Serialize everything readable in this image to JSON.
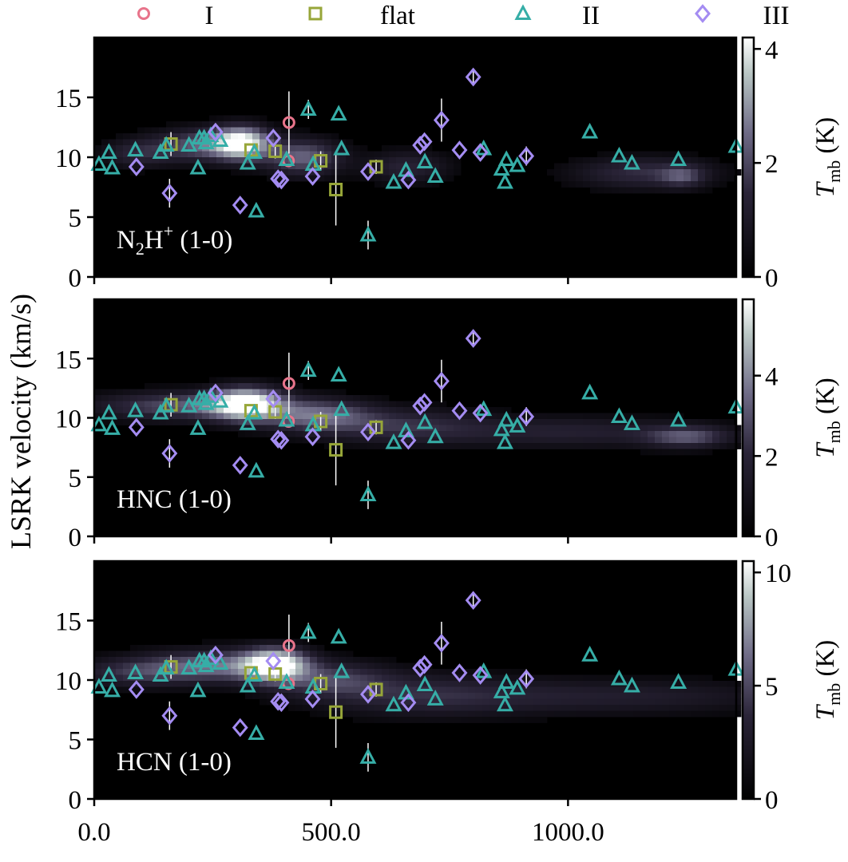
{
  "chart_data": {
    "type": "scatter",
    "ylabel": "LSRK velocity (km/s)",
    "xlim": [
      0,
      1355
    ],
    "ylim": [
      0,
      20
    ],
    "xticks": [
      0,
      500,
      1000
    ],
    "xtick_labels": [
      "0.0",
      "500.0",
      "1000.0"
    ],
    "yticks": [
      0,
      5,
      10,
      15
    ],
    "legend": {
      "placement": "top",
      "entries": [
        {
          "label": "I",
          "marker": "circle",
          "color": "#e8748b"
        },
        {
          "label": "flat",
          "marker": "square",
          "color": "#97a639"
        },
        {
          "label": "II",
          "marker": "triangle",
          "color": "#36aea7"
        },
        {
          "label": "III",
          "marker": "diamond",
          "color": "#a48cf2"
        }
      ]
    },
    "panels": [
      {
        "label_main": "N",
        "label_sub": "2",
        "label_main2": "H",
        "label_sup": "+",
        "label_tail": " (1-0)",
        "colorbar": {
          "label_main": "T",
          "label_sub": "mb",
          "label_unit": " (K)",
          "ticks": [
            0,
            2,
            4
          ],
          "max": 4.2
        },
        "emission": [
          {
            "x": 310,
            "v": 11.2,
            "sx": 40,
            "sv": 0.9,
            "amp": 1.0
          },
          {
            "x": 225,
            "v": 11.0,
            "sx": 70,
            "sv": 0.9,
            "amp": 0.45
          },
          {
            "x": 440,
            "v": 10.0,
            "sx": 55,
            "sv": 1.0,
            "amp": 0.5
          },
          {
            "x": 90,
            "v": 10.3,
            "sx": 50,
            "sv": 0.8,
            "amp": 0.25
          },
          {
            "x": 660,
            "v": 9.2,
            "sx": 60,
            "sv": 0.9,
            "amp": 0.25
          },
          {
            "x": 1160,
            "v": 8.7,
            "sx": 100,
            "sv": 0.9,
            "amp": 0.3
          },
          {
            "x": 1240,
            "v": 8.4,
            "sx": 30,
            "sv": 0.6,
            "amp": 0.3
          }
        ]
      },
      {
        "label_main": "HNC (1-0)",
        "label_sub": "",
        "label_main2": "",
        "label_sup": "",
        "label_tail": "",
        "colorbar": {
          "label_main": "T",
          "label_sub": "mb",
          "label_unit": " (K)",
          "ticks": [
            0,
            2,
            4
          ],
          "max": 5.9
        },
        "emission": [
          {
            "x": 320,
            "v": 11.2,
            "sx": 50,
            "sv": 0.9,
            "amp": 1.0
          },
          {
            "x": 200,
            "v": 11.0,
            "sx": 130,
            "sv": 0.8,
            "amp": 0.45
          },
          {
            "x": 470,
            "v": 10.2,
            "sx": 80,
            "sv": 0.9,
            "amp": 0.5
          },
          {
            "x": 650,
            "v": 9.3,
            "sx": 120,
            "sv": 1.0,
            "amp": 0.28
          },
          {
            "x": 1000,
            "v": 8.8,
            "sx": 200,
            "sv": 0.9,
            "amp": 0.22
          },
          {
            "x": 1250,
            "v": 8.4,
            "sx": 60,
            "sv": 0.6,
            "amp": 0.4
          }
        ]
      },
      {
        "label_main": "HCN (1-0)",
        "label_sub": "",
        "label_main2": "",
        "label_sup": "",
        "label_tail": "",
        "colorbar": {
          "label_main": "T",
          "label_sub": "mb",
          "label_unit": " (K)",
          "ticks": [
            0,
            5,
            10
          ],
          "max": 10.5
        },
        "emission": [
          {
            "x": 380,
            "v": 11.3,
            "sx": 45,
            "sv": 0.9,
            "amp": 1.0
          },
          {
            "x": 260,
            "v": 11.2,
            "sx": 110,
            "sv": 0.9,
            "amp": 0.5
          },
          {
            "x": 90,
            "v": 10.6,
            "sx": 90,
            "sv": 0.8,
            "amp": 0.28
          },
          {
            "x": 500,
            "v": 10.0,
            "sx": 90,
            "sv": 1.0,
            "amp": 0.35
          },
          {
            "x": 700,
            "v": 8.7,
            "sx": 150,
            "sv": 1.2,
            "amp": 0.25
          },
          {
            "x": 1100,
            "v": 8.6,
            "sx": 250,
            "sv": 1.0,
            "amp": 0.2
          }
        ]
      }
    ],
    "series": [
      {
        "name": "I",
        "marker": "circle",
        "color": "#e8748b",
        "points": [
          [
            411,
            12.9,
            2.6
          ],
          [
            410,
            9.7,
            0
          ]
        ]
      },
      {
        "name": "flat",
        "marker": "square",
        "color": "#97a639",
        "points": [
          [
            162,
            11.1,
            1.0
          ],
          [
            331,
            10.6,
            0.6
          ],
          [
            382,
            10.5,
            0.6
          ],
          [
            478,
            9.7,
            0.8
          ],
          [
            510,
            7.3,
            3.0
          ],
          [
            595,
            9.2,
            0.6
          ]
        ]
      },
      {
        "name": "II",
        "marker": "triangle",
        "color": "#36aea7",
        "points": [
          [
            10,
            9.4,
            0
          ],
          [
            31,
            10.4,
            0
          ],
          [
            38,
            9.1,
            0
          ],
          [
            87,
            10.6,
            0
          ],
          [
            140,
            10.4,
            0
          ],
          [
            152,
            11.0,
            0
          ],
          [
            200,
            11.0,
            0
          ],
          [
            219,
            9.1,
            0
          ],
          [
            222,
            11.6,
            0
          ],
          [
            232,
            11.6,
            0
          ],
          [
            236,
            11.2,
            0
          ],
          [
            246,
            11.8,
            0
          ],
          [
            266,
            11.4,
            0
          ],
          [
            324,
            9.5,
            0
          ],
          [
            338,
            10.4,
            0
          ],
          [
            342,
            5.5,
            0
          ],
          [
            406,
            9.8,
            0
          ],
          [
            452,
            14.0,
            0.8
          ],
          [
            462,
            9.4,
            0
          ],
          [
            516,
            13.6,
            0
          ],
          [
            522,
            10.7,
            0
          ],
          [
            578,
            3.5,
            1.2
          ],
          [
            632,
            7.9,
            0
          ],
          [
            658,
            8.9,
            0
          ],
          [
            698,
            9.6,
            0
          ],
          [
            720,
            8.4,
            0
          ],
          [
            822,
            10.7,
            0
          ],
          [
            860,
            9.0,
            0
          ],
          [
            867,
            7.9,
            0
          ],
          [
            870,
            9.8,
            0
          ],
          [
            893,
            9.3,
            0
          ],
          [
            1046,
            12.1,
            0
          ],
          [
            1108,
            10.1,
            0
          ],
          [
            1135,
            9.5,
            0
          ],
          [
            1233,
            9.8,
            0
          ],
          [
            1355,
            10.9,
            0
          ]
        ]
      },
      {
        "name": "III",
        "marker": "diamond",
        "color": "#a48cf2",
        "points": [
          [
            89,
            9.2,
            0
          ],
          [
            159,
            7.0,
            1.2
          ],
          [
            256,
            12.1,
            0
          ],
          [
            308,
            6.0,
            0
          ],
          [
            378,
            11.6,
            0
          ],
          [
            388,
            8.2,
            0
          ],
          [
            395,
            8.1,
            0
          ],
          [
            461,
            8.4,
            0
          ],
          [
            578,
            8.8,
            0
          ],
          [
            663,
            8.1,
            0
          ],
          [
            688,
            11.0,
            0
          ],
          [
            697,
            11.3,
            0
          ],
          [
            733,
            13.1,
            1.8
          ],
          [
            771,
            10.6,
            0
          ],
          [
            800,
            16.7,
            0.5
          ],
          [
            815,
            10.4,
            0
          ],
          [
            912,
            10.1,
            0.8
          ]
        ]
      }
    ]
  }
}
